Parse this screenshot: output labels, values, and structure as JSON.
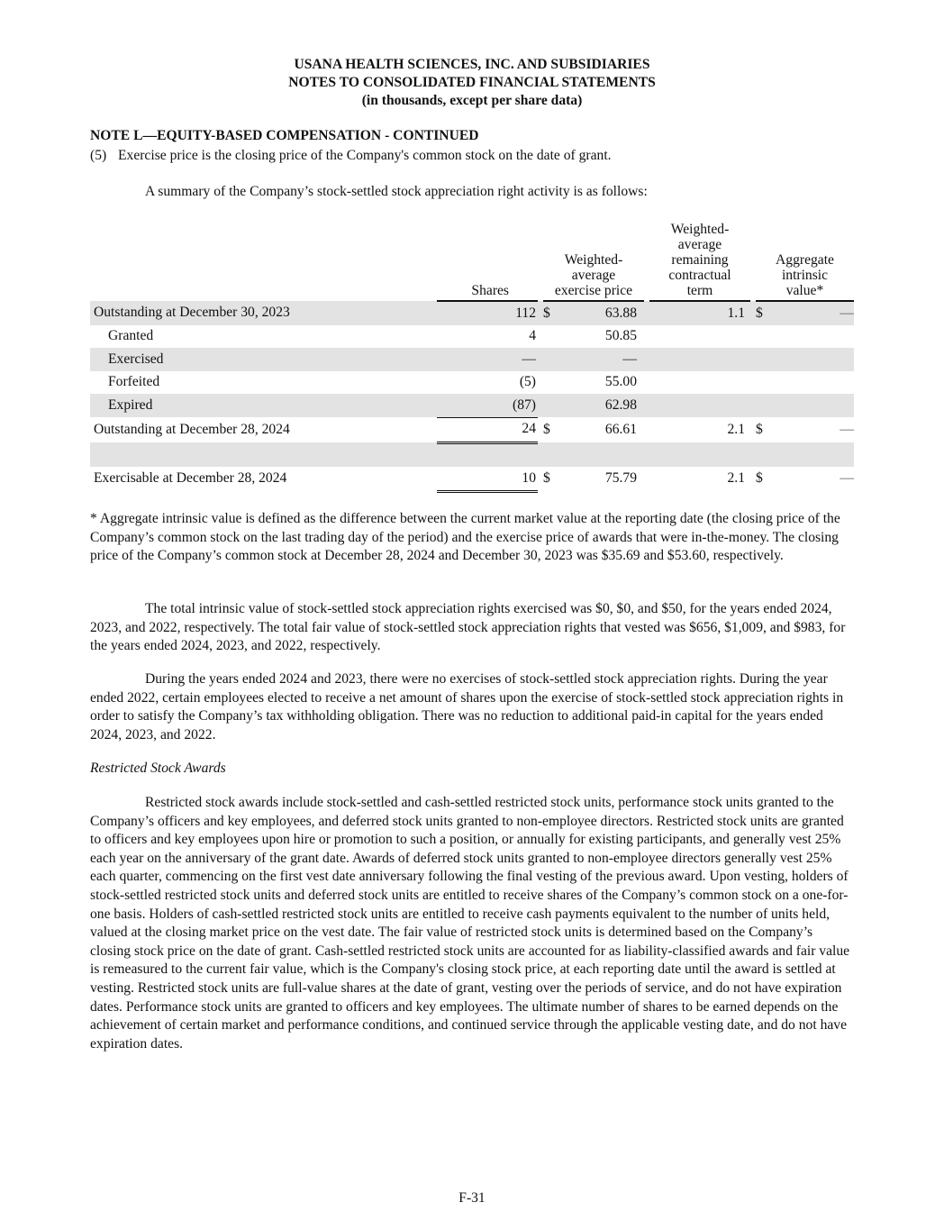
{
  "header": {
    "line1": "USANA HEALTH SCIENCES, INC. AND SUBSIDIARIES",
    "line2": "NOTES TO CONSOLIDATED FINANCIAL STATEMENTS",
    "line3": "(in thousands, except per share data)"
  },
  "note_title": "NOTE L—EQUITY-BASED COMPENSATION - CONTINUED",
  "footnote5": {
    "num": "(5)",
    "text": "Exercise price is the closing price of the Company's common stock on the date of grant."
  },
  "intro": "A summary of the Company’s stock-settled stock appreciation right activity is as follows:",
  "table": {
    "headers": {
      "shares": "Shares",
      "price": [
        "Weighted-",
        "average",
        "exercise price"
      ],
      "term": [
        "Weighted-",
        "average",
        "remaining",
        "contractual",
        "term"
      ],
      "value": [
        "Aggregate",
        "intrinsic",
        "value*"
      ]
    },
    "rows": [
      {
        "label": "Outstanding at December 30, 2023",
        "shares": "112",
        "cur1": "$",
        "price": "63.88",
        "term": "1.1",
        "cur2": "$",
        "value": "—"
      },
      {
        "label": "Granted",
        "shares": "4",
        "cur1": "",
        "price": "50.85",
        "term": "",
        "cur2": "",
        "value": ""
      },
      {
        "label": "Exercised",
        "shares": "—",
        "cur1": "",
        "price": "—",
        "term": "",
        "cur2": "",
        "value": ""
      },
      {
        "label": "Forfeited",
        "shares": "(5)",
        "cur1": "",
        "price": "55.00",
        "term": "",
        "cur2": "",
        "value": ""
      },
      {
        "label": "Expired",
        "shares": "(87)",
        "cur1": "",
        "price": "62.98",
        "term": "",
        "cur2": "",
        "value": ""
      },
      {
        "label": "Outstanding at December 28, 2024",
        "shares": "24",
        "cur1": "$",
        "price": "66.61",
        "term": "2.1",
        "cur2": "$",
        "value": "—"
      },
      {
        "label": "Exercisable at December 28, 2024",
        "shares": "10",
        "cur1": "$",
        "price": "75.79",
        "term": "2.1",
        "cur2": "$",
        "value": "—"
      }
    ]
  },
  "paragraphs": {
    "footnote_star": "* Aggregate intrinsic value is defined as the difference between the current market value at the reporting date (the closing price of the Company’s common stock on the last trading day of the period) and the exercise price of awards that were in-the-money. The closing price of the Company’s common stock at December 28, 2024 and December 30, 2023 was $35.69 and $53.60, respectively.",
    "p1": "The total intrinsic value of stock-settled stock appreciation rights exercised was $0, $0, and $50, for the years ended 2024, 2023, and 2022, respectively. The total fair value of stock-settled stock appreciation rights that vested was $656, $1,009, and $983, for the years ended 2024, 2023, and 2022, respectively.",
    "p2": "During the years ended 2024 and 2023, there were no exercises of stock-settled stock appreciation rights. During the year ended 2022, certain employees elected to receive a net amount of shares upon the exercise of stock-settled stock appreciation rights in order to satisfy the Company’s tax withholding obligation. There was no reduction to additional paid-in capital for the years ended 2024, 2023, and 2022.",
    "subheading": "Restricted Stock Awards",
    "p3": "Restricted stock awards include stock-settled and cash-settled restricted stock units, performance stock units granted to the Company’s officers and key employees, and deferred stock units granted to non-employee directors. Restricted stock units are granted to officers and key employees upon hire or promotion to such a position, or annually for existing participants, and generally vest 25% each year on the anniversary of the grant date. Awards of deferred stock units granted to non-employee directors generally vest 25% each quarter, commencing on the first vest date anniversary following the final vesting of the previous award. Upon vesting, holders of stock-settled restricted stock units and deferred stock units are entitled to receive shares of the Company’s common stock on a one-for-one basis. Holders of cash-settled restricted stock units are entitled to receive cash payments equivalent to the number of units held, valued at the closing market price on the vest date. The fair value of restricted stock units is determined based on the Company’s closing stock price on the date of grant. Cash-settled restricted stock units are accounted for as liability-classified awards and fair value is remeasured to the current fair value, which is the Company's closing stock price, at each reporting date until the award is settled at vesting. Restricted stock units are full-value shares at the date of grant, vesting over the periods of service, and do not have expiration dates. Performance stock units are granted to officers and key employees. The ultimate number of shares to be earned depends on the achievement of certain market and performance conditions, and continued service through the applicable vesting date, and do not have expiration dates."
  },
  "page_number": "F-31"
}
